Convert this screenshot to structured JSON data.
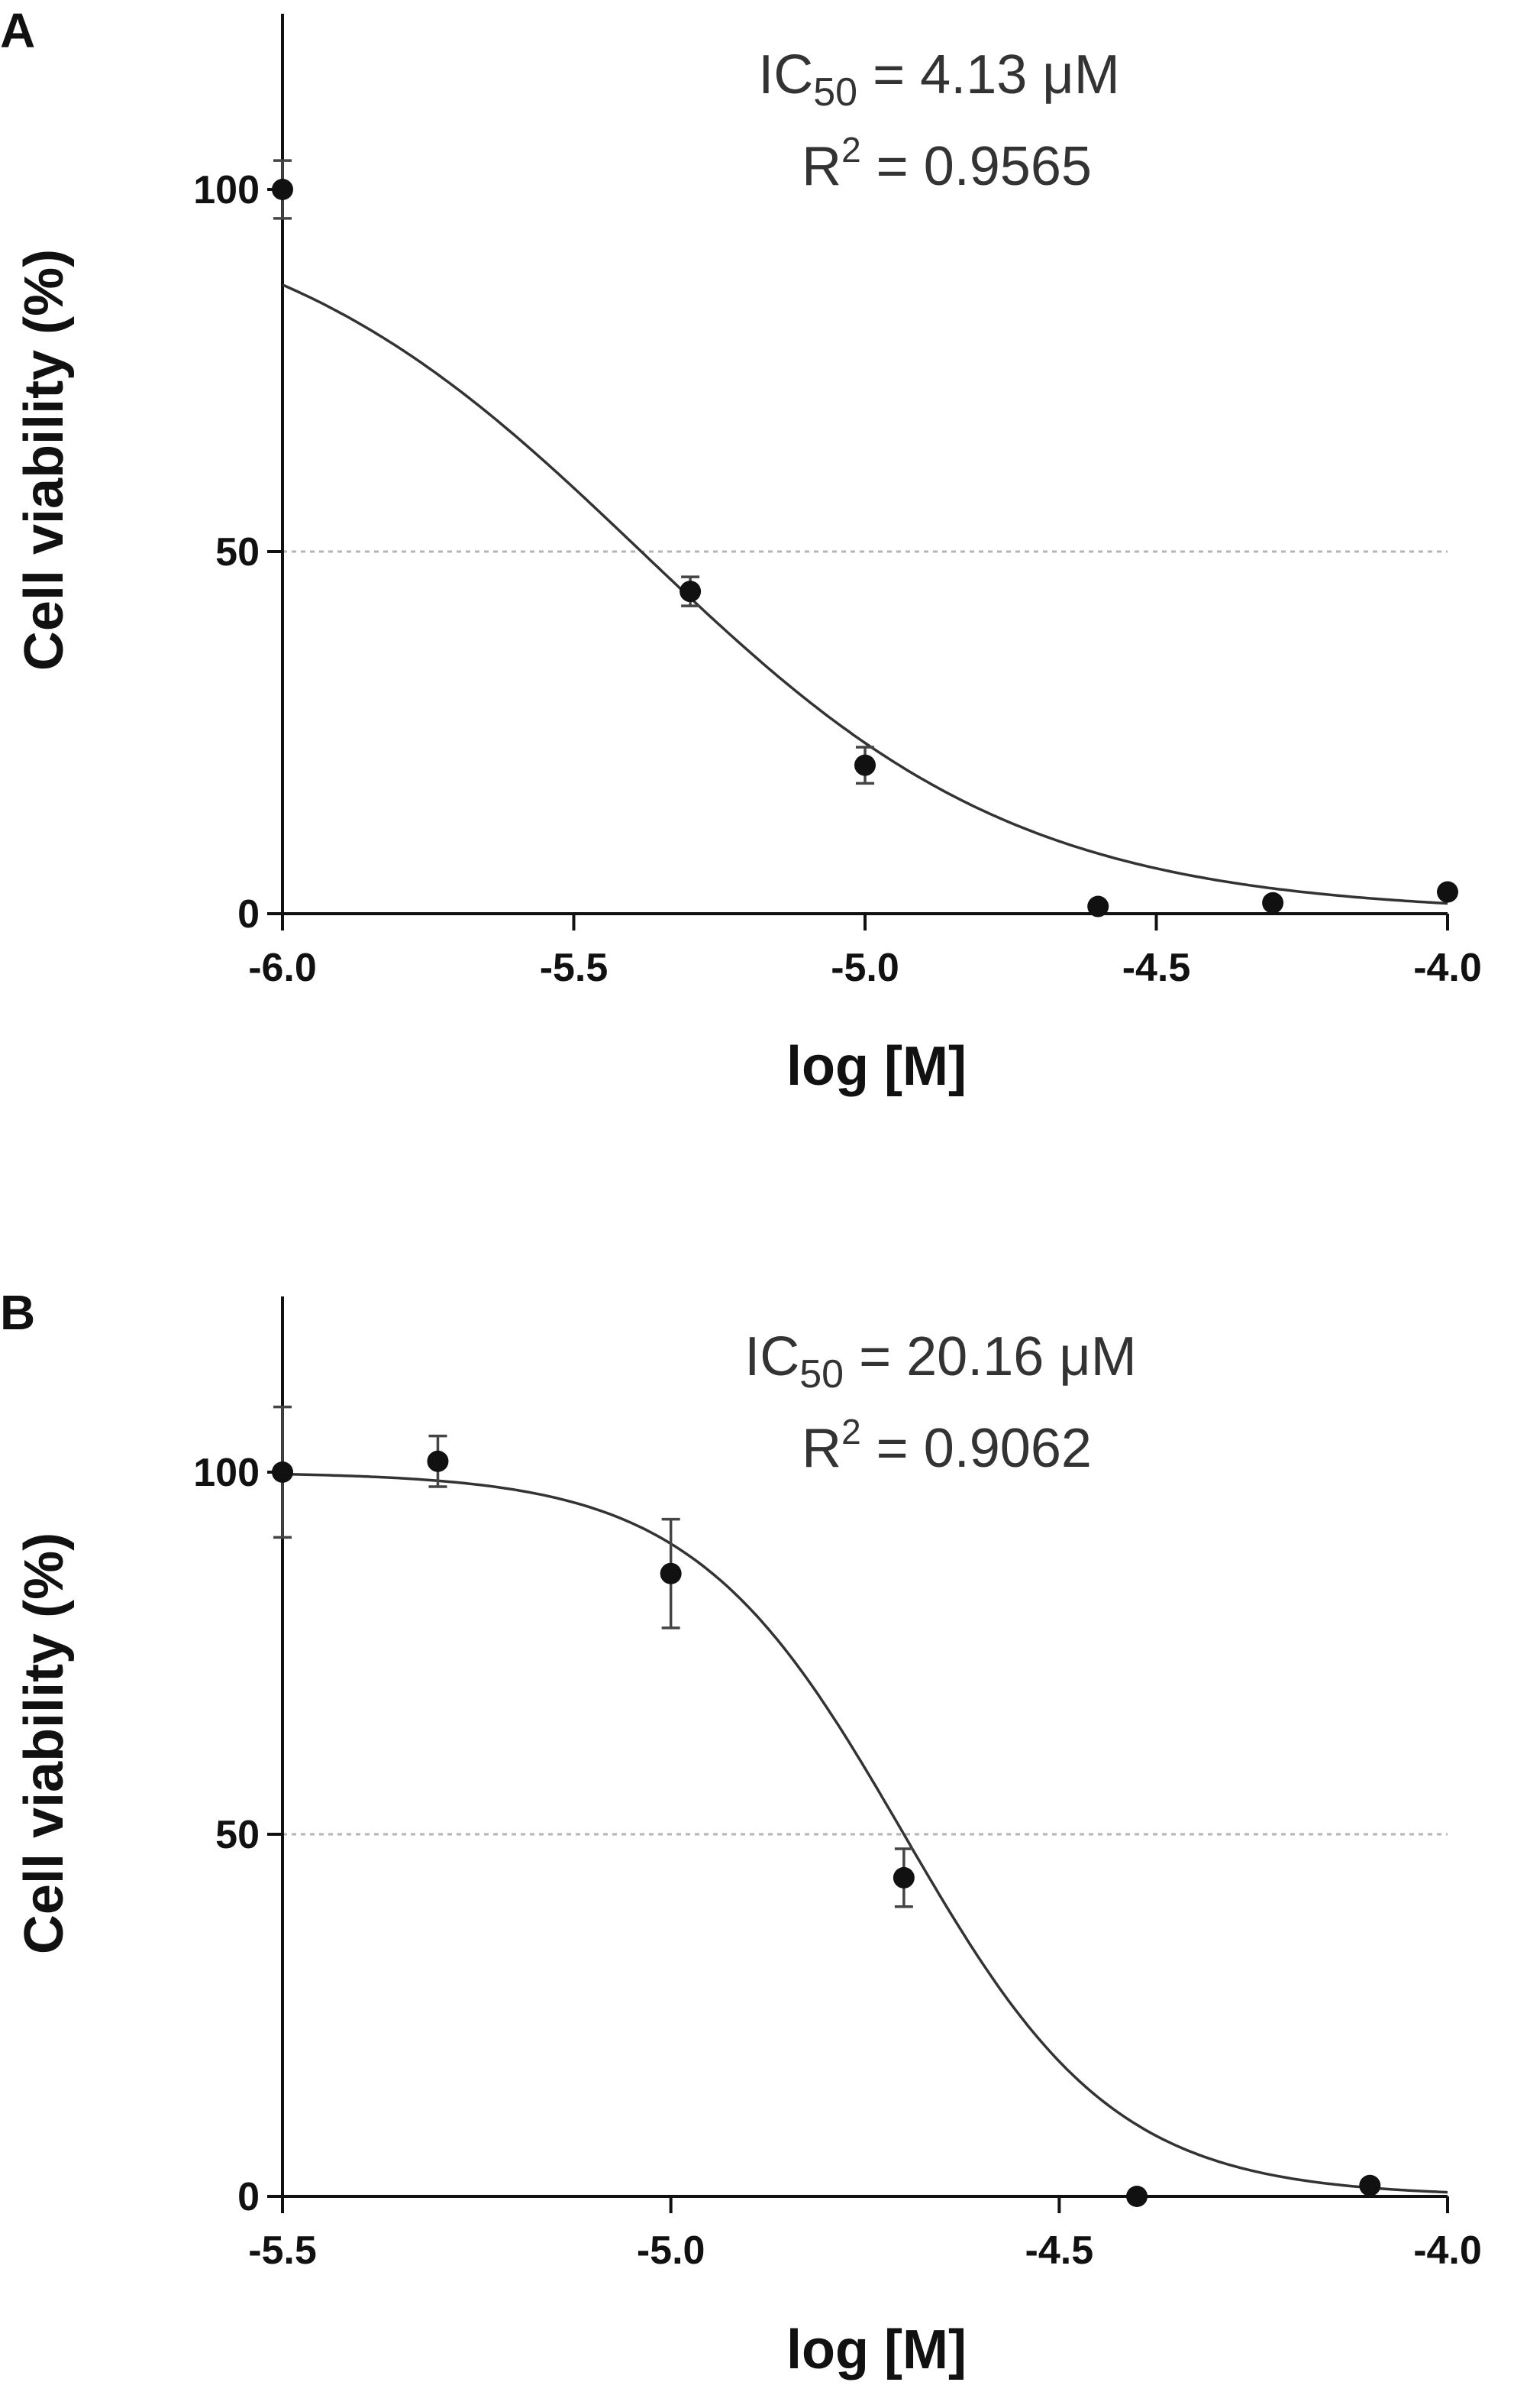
{
  "chart_data": [
    {
      "panel": "A",
      "type": "scatter",
      "xlabel": "log [M]",
      "ylabel": "Cell viability (%)",
      "xlim": [
        -6.0,
        -4.0
      ],
      "ylim": [
        0,
        125
      ],
      "xticks": [
        -6.0,
        -5.5,
        -5.0,
        -4.5,
        -4.0
      ],
      "xtick_labels": [
        "-6.0",
        "-5.5",
        "-5.0",
        "-4.5",
        "-4.0"
      ],
      "yticks": [
        0,
        50,
        100
      ],
      "ytick_labels": [
        "0",
        "50",
        "100"
      ],
      "reference_line_y": 50,
      "annotation": {
        "ic50_prefix": "IC",
        "ic50_sub": "50",
        "ic50_value": " = 4.13 μM",
        "r2_prefix": "R",
        "r2_sup": "2",
        "r2_value": " = 0.9565"
      },
      "points": [
        {
          "x": -6.0,
          "y": 100,
          "err": 4
        },
        {
          "x": -5.3,
          "y": 44.5,
          "err": 2
        },
        {
          "x": -5.0,
          "y": 20.5,
          "err": 2.5
        },
        {
          "x": -4.6,
          "y": 1,
          "err": 0
        },
        {
          "x": -4.3,
          "y": 1.5,
          "err": 0
        },
        {
          "x": -4.0,
          "y": 3,
          "err": 0
        }
      ],
      "fit": {
        "bottom": 0,
        "top": 100,
        "log_ic50": -5.384,
        "hill_slope": -1.33
      }
    },
    {
      "panel": "B",
      "type": "scatter",
      "xlabel": "log [M]",
      "ylabel": "Cell viability (%)",
      "xlim": [
        -5.5,
        -4.0
      ],
      "ylim": [
        0,
        125
      ],
      "xticks": [
        -5.5,
        -5.0,
        -4.5,
        -4.0
      ],
      "xtick_labels": [
        "-5.5",
        "-5.0",
        "-4.5",
        "-4.0"
      ],
      "yticks": [
        0,
        50,
        100
      ],
      "ytick_labels": [
        "0",
        "50",
        "100"
      ],
      "reference_line_y": 50,
      "annotation": {
        "ic50_prefix": "IC",
        "ic50_sub": "50",
        "ic50_value": " = 20.16 μM",
        "r2_prefix": "R",
        "r2_sup": "2",
        "r2_value": " = 0.9062"
      },
      "points": [
        {
          "x": -5.5,
          "y": 100,
          "err": 9
        },
        {
          "x": -5.3,
          "y": 101.5,
          "err": 3.5
        },
        {
          "x": -5.0,
          "y": 86,
          "err": 7.5
        },
        {
          "x": -4.7,
          "y": 44,
          "err": 4
        },
        {
          "x": -4.4,
          "y": 0,
          "err": 0
        },
        {
          "x": -4.1,
          "y": 1.5,
          "err": 0
        }
      ],
      "fit": {
        "bottom": 0,
        "top": 100,
        "log_ic50": -4.7,
        "hill_slope": -3.2
      }
    }
  ]
}
